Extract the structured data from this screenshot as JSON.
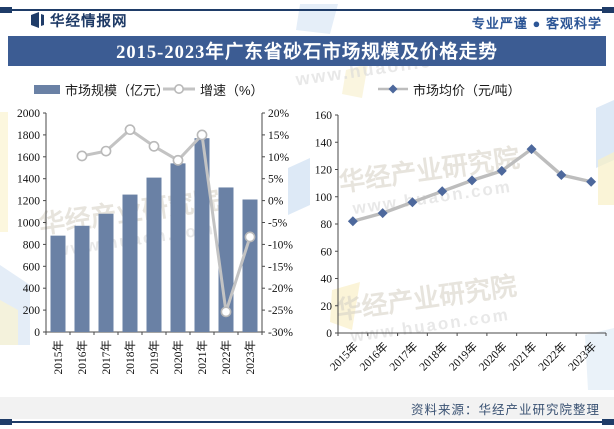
{
  "header": {
    "brand": "华经情报网",
    "slogan": "专业严谨 ● 客观科学"
  },
  "title": "2015-2023年广东省砂石市场规模及价格走势",
  "legend": {
    "market_size": "市场规模（亿元）",
    "growth": "增速（%）",
    "avg_price": "市场均价（元/吨）"
  },
  "watermark": {
    "name": "华经产业研究院",
    "url": "www.huaon.com"
  },
  "source": "资料来源：华经产业研究院整理",
  "colors": {
    "navy": "#1F3C68",
    "title_bar": "#3C5C93",
    "bar": "#6A81A5",
    "growth_line": "#C3C3C3",
    "diamond": "#4D689C",
    "slogan_text": "#2D5696",
    "watermark": "#D8D3C8"
  },
  "chart_data": [
    {
      "type": "bar",
      "title": "广东省砂石市场规模及增速",
      "categories": [
        "2015年",
        "2016年",
        "2017年",
        "2018年",
        "2019年",
        "2020年",
        "2021年",
        "2022年",
        "2023年"
      ],
      "series": [
        {
          "name": "市场规模（亿元）",
          "kind": "bar",
          "axis": "left",
          "values": [
            880,
            970,
            1080,
            1255,
            1410,
            1540,
            1770,
            1320,
            1210
          ]
        },
        {
          "name": "增速（%）",
          "kind": "line",
          "axis": "right",
          "values": [
            null,
            10.2,
            11.3,
            16.2,
            12.4,
            9.2,
            15.0,
            -25.4,
            -8.3
          ]
        }
      ],
      "left_axis": {
        "min": 0,
        "max": 2000,
        "step": 200,
        "label": ""
      },
      "right_axis": {
        "min": -30,
        "max": 20,
        "step": 5,
        "format": "percent"
      },
      "grid": false,
      "legend_position": "top"
    },
    {
      "type": "line",
      "title": "广东省砂石市场均价",
      "categories": [
        "2015年",
        "2016年",
        "2017年",
        "2018年",
        "2019年",
        "2020年",
        "2021年",
        "2022年",
        "2023年"
      ],
      "series": [
        {
          "name": "市场均价（元/吨）",
          "kind": "line",
          "values": [
            82,
            88,
            96,
            104,
            112,
            119,
            135,
            116,
            111
          ]
        }
      ],
      "y_axis": {
        "min": 0,
        "max": 160,
        "step": 20
      },
      "grid": false,
      "legend_position": "top"
    }
  ]
}
